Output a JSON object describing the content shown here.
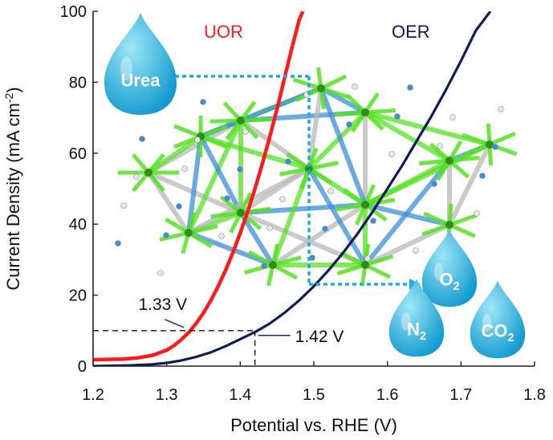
{
  "chart_data": {
    "type": "line",
    "xlabel": "Potential vs. RHE (V)",
    "ylabel": "Current Density (mA cm",
    "ylabel_sup": "-2",
    "ylabel_tail": ")",
    "xlim": [
      1.2,
      1.8
    ],
    "ylim": [
      0,
      100
    ],
    "xticks": [
      "1.2",
      "1.3",
      "1.4",
      "1.5",
      "1.6",
      "1.7",
      "1.8"
    ],
    "yticks": [
      "0",
      "20",
      "40",
      "60",
      "80",
      "100"
    ],
    "grid": false,
    "series": [
      {
        "name": "UOR",
        "color": "#ff1a1a",
        "x": [
          1.2,
          1.22,
          1.24,
          1.26,
          1.28,
          1.3,
          1.31,
          1.32,
          1.33,
          1.34,
          1.35,
          1.36,
          1.37,
          1.38,
          1.39,
          1.4,
          1.41,
          1.42,
          1.43,
          1.44,
          1.45,
          1.46,
          1.47,
          1.48,
          1.485
        ],
        "y": [
          1.8,
          1.9,
          2.0,
          2.3,
          3.0,
          4.5,
          5.8,
          7.5,
          9.5,
          12.0,
          15.0,
          18.5,
          22.5,
          27.0,
          32.0,
          37.5,
          43.5,
          50.0,
          57.0,
          64.5,
          72.5,
          81.0,
          89.5,
          97.5,
          100.0
        ]
      },
      {
        "name": "OER",
        "color": "#0d1a5c",
        "x": [
          1.2,
          1.25,
          1.28,
          1.3,
          1.32,
          1.34,
          1.36,
          1.38,
          1.4,
          1.42,
          1.44,
          1.46,
          1.48,
          1.5,
          1.52,
          1.54,
          1.56,
          1.58,
          1.6,
          1.62,
          1.64,
          1.66,
          1.68,
          1.7,
          1.72,
          1.74
        ],
        "y": [
          0.0,
          0.2,
          0.5,
          0.9,
          1.6,
          2.6,
          3.9,
          5.6,
          7.6,
          9.6,
          12.0,
          15.0,
          18.5,
          22.5,
          27.0,
          32.0,
          37.5,
          43.5,
          50.0,
          56.5,
          63.5,
          70.5,
          78.0,
          86.0,
          94.5,
          100.0
        ]
      }
    ],
    "annotations": {
      "reference_current": 10,
      "uor_onset": {
        "label": "1.33 V",
        "x": 1.33,
        "y": 10
      },
      "oer_onset": {
        "label": "1.42 V",
        "x": 1.42,
        "y": 10
      }
    }
  },
  "droplets": [
    {
      "name": "urea",
      "text": "Urea",
      "sub": ""
    },
    {
      "name": "oxygen",
      "text": "O",
      "sub": "2"
    },
    {
      "name": "nitrogen",
      "text": "N",
      "sub": "2"
    },
    {
      "name": "carbon-dioxide",
      "text": "CO",
      "sub": "2"
    }
  ],
  "colors": {
    "droplet_light": "#9fe6f7",
    "droplet_dark": "#139bd0",
    "guide_line": "#1fa9e6",
    "crystal_green": "#55e022",
    "crystal_blue": "#3b8fd8",
    "crystal_grey": "#b8b8b8"
  }
}
